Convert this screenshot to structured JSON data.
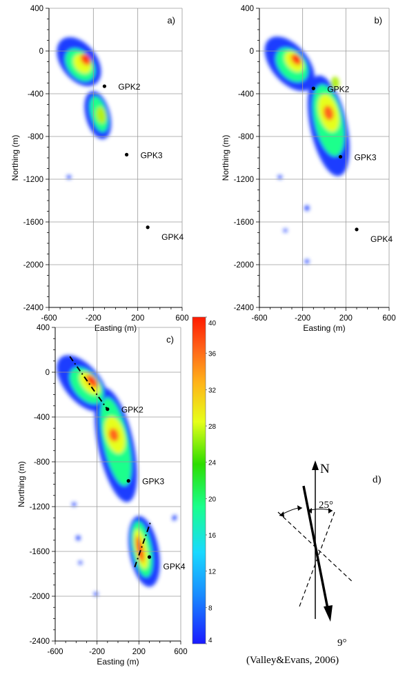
{
  "chart_data": [
    {
      "type": "heatmap",
      "panel_label": "a)",
      "xlabel": "Easting (m)",
      "ylabel": "Northing (m)",
      "xlim": [
        -600,
        600
      ],
      "ylim": [
        -2400,
        400
      ],
      "x_ticks": [
        -600,
        -200,
        200,
        600
      ],
      "y_ticks": [
        400,
        0,
        -400,
        -800,
        -1200,
        -1600,
        -2000,
        -2400
      ],
      "grid": true,
      "wells": [
        {
          "name": "GPK2",
          "x": -100,
          "y": -330
        },
        {
          "name": "GPK3",
          "x": 100,
          "y": -970
        },
        {
          "name": "GPK4",
          "x": 290,
          "y": -1650
        }
      ]
    },
    {
      "type": "heatmap",
      "panel_label": "b)",
      "xlabel": "Easting (m)",
      "ylabel": "Northing (m)",
      "xlim": [
        -600,
        600
      ],
      "ylim": [
        -2400,
        400
      ],
      "x_ticks": [
        -600,
        -200,
        200,
        600
      ],
      "y_ticks": [
        400,
        0,
        -400,
        -800,
        -1200,
        -1600,
        -2000,
        -2400
      ],
      "grid": true,
      "wells": [
        {
          "name": "GPK2",
          "x": -100,
          "y": -350
        },
        {
          "name": "GPK3",
          "x": 150,
          "y": -990
        },
        {
          "name": "GPK4",
          "x": 300,
          "y": -1670
        }
      ]
    },
    {
      "type": "heatmap",
      "panel_label": "c)",
      "xlabel": "Easting (m)",
      "ylabel": "Northing (m)",
      "xlim": [
        -600,
        600
      ],
      "ylim": [
        -2400,
        400
      ],
      "x_ticks": [
        -600,
        -200,
        200,
        600
      ],
      "y_ticks": [
        400,
        0,
        -400,
        -800,
        -1200,
        -1600,
        -2000,
        -2400
      ],
      "grid": true,
      "wells": [
        {
          "name": "GPK2",
          "x": -100,
          "y": -330
        },
        {
          "name": "GPK3",
          "x": 100,
          "y": -970
        },
        {
          "name": "GPK4",
          "x": 300,
          "y": -1650
        }
      ],
      "colorbar": {
        "min": 4,
        "max": 40,
        "ticks": [
          40,
          36,
          32,
          28,
          24,
          20,
          16,
          12,
          8,
          4
        ]
      }
    }
  ],
  "panel_d": {
    "label": "d)",
    "north_label": "N",
    "angle_25": "25°",
    "angle_9": "9°",
    "citation": "(Valley&Evans, 2006)"
  },
  "colors": {
    "low": "#1a3cff",
    "high": "#ff1a00"
  }
}
